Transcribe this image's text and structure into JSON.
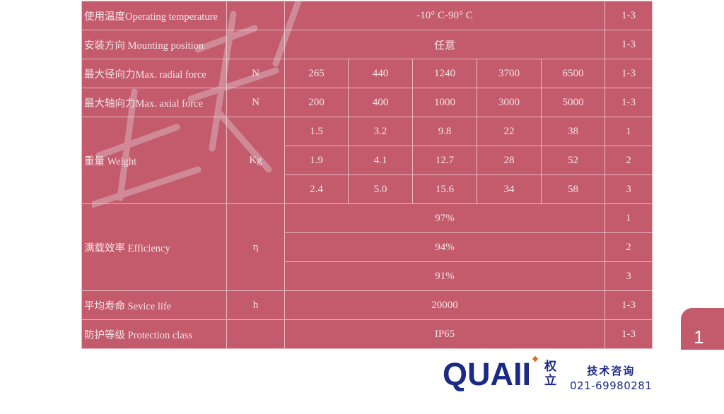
{
  "table": {
    "operating_temp": {
      "label": "使用温度Operating temperature",
      "value": "-10° C-90° C",
      "type": "1-3"
    },
    "mounting": {
      "label": "安装方向 Mounting position",
      "value": "任意",
      "type": "1-3"
    },
    "radial": {
      "label": "最大径向力Max. radial force",
      "unit": "N",
      "values": [
        "265",
        "440",
        "1240",
        "3700",
        "6500"
      ],
      "type": "1-3"
    },
    "axial": {
      "label": "最大轴向力Max. axial force",
      "unit": "N",
      "values": [
        "200",
        "400",
        "1000",
        "3000",
        "5000"
      ],
      "type": "1-3"
    },
    "weight": {
      "label": "重量 Weight",
      "unit": "Kg",
      "rows": [
        {
          "values": [
            "1.5",
            "3.2",
            "9.8",
            "22",
            "38"
          ],
          "type": "1"
        },
        {
          "values": [
            "1.9",
            "4.1",
            "12.7",
            "28",
            "52"
          ],
          "type": "2"
        },
        {
          "values": [
            "2.4",
            "5.0",
            "15.6",
            "34",
            "58"
          ],
          "type": "3"
        }
      ]
    },
    "efficiency": {
      "label": "满载效率 Efficiency",
      "unit": "η",
      "rows": [
        {
          "value": "97%",
          "type": "1"
        },
        {
          "value": "94%",
          "type": "2"
        },
        {
          "value": "91%",
          "type": "3"
        }
      ]
    },
    "life": {
      "label": "平均寿命 Sevice life",
      "unit": "h",
      "value": "20000",
      "type": "1-3"
    },
    "protection": {
      "label": "防护等级 Protection class",
      "value": "IP65",
      "type": "1-3"
    }
  },
  "page_number": "1",
  "footer": {
    "logo_text": "QUAII",
    "logo_cn": "权立",
    "contact_title": "技术咨询",
    "phone": "021-69980281"
  },
  "colors": {
    "table_bg": "#c35b6d",
    "brand_blue": "#1b2a84",
    "brand_orange": "#d9731f"
  }
}
